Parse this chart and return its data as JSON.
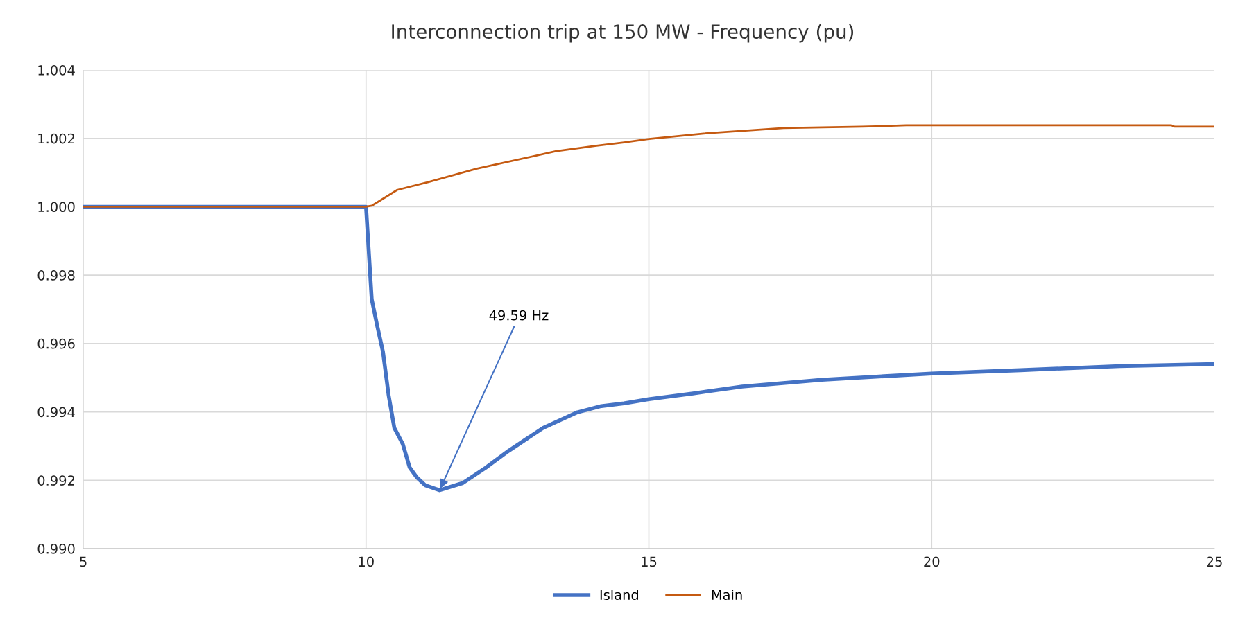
{
  "chart_data": {
    "type": "line",
    "title": "Interconnection trip at 150 MW - Frequency (pu)",
    "xlim": [
      5,
      25
    ],
    "xticks": [
      5,
      10,
      15,
      20,
      25
    ],
    "ylim": [
      0.99,
      1.004
    ],
    "yticks": [
      {
        "value": 0.99,
        "label": "0.990"
      },
      {
        "value": 0.992,
        "label": "0.992"
      },
      {
        "value": 0.994,
        "label": "0.994"
      },
      {
        "value": 0.996,
        "label": "0.996"
      },
      {
        "value": 0.998,
        "label": "0.998"
      },
      {
        "value": 1.0,
        "label": "1.000"
      },
      {
        "value": 1.002,
        "label": "1.002"
      },
      {
        "value": 1.004,
        "label": "1.004"
      }
    ],
    "grid": true,
    "legend": "bottom",
    "marker": "none",
    "line_style": "solid",
    "series": [
      {
        "name": "Island",
        "color": "#4472c4",
        "x": [
          5,
          10,
          10.1,
          10.2,
          10.3,
          10.4,
          10.5,
          10.65,
          10.77,
          10.9,
          11.05,
          11.3,
          11.71,
          12.11,
          12.52,
          13.13,
          13.74,
          14.16,
          14.56,
          15,
          15.78,
          16.65,
          18.06,
          20,
          21.57,
          23.32,
          25
        ],
        "values": [
          1.0,
          1.0,
          0.9973,
          0.9965,
          0.99575,
          0.99448,
          0.99353,
          0.99306,
          0.99238,
          0.99208,
          0.99185,
          0.99171,
          0.99192,
          0.99236,
          0.99286,
          0.99353,
          0.99399,
          0.99417,
          0.99425,
          0.99437,
          0.99454,
          0.99474,
          0.99494,
          0.99512,
          0.99522,
          0.99534,
          0.9954
        ]
      },
      {
        "name": "Main",
        "color": "#c55a11",
        "x": [
          5,
          10,
          10.1,
          10.55,
          11.1,
          11.95,
          13.35,
          14.05,
          14.56,
          15,
          15.97,
          17.38,
          18.77,
          19.55,
          24.24,
          24.3,
          25
        ],
        "values": [
          1.0,
          1.0,
          1.00003,
          1.00049,
          1.00072,
          1.00111,
          1.00162,
          1.00178,
          1.00188,
          1.00198,
          1.00214,
          1.0023,
          1.00234,
          1.00238,
          1.00238,
          1.00234,
          1.00234
        ]
      }
    ],
    "annotations": [
      {
        "text": "49.59 Hz",
        "x": 11.3,
        "y": 0.99171
      }
    ]
  }
}
